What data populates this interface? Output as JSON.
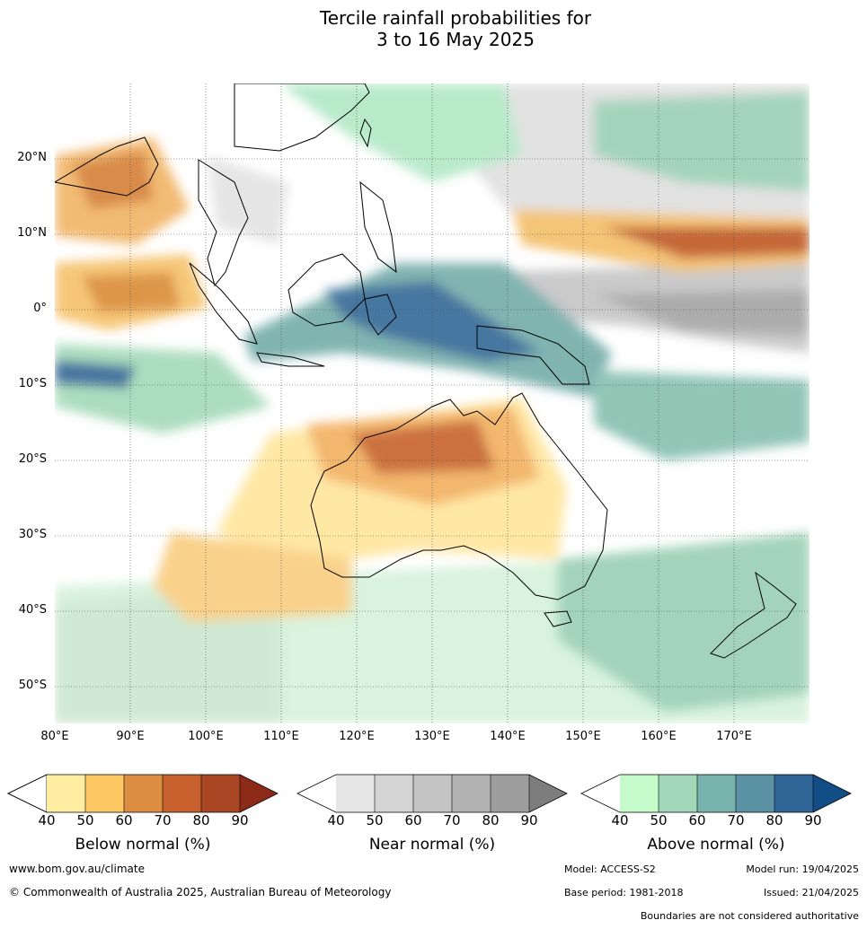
{
  "title_line1": "Tercile rainfall probabilities for",
  "title_line2": "3 to 16 May 2025",
  "lat_labels": [
    "20°N",
    "10°N",
    "0°",
    "10°S",
    "20°S",
    "30°S",
    "40°S",
    "50°S"
  ],
  "lon_labels": [
    "80°E",
    "90°E",
    "100°E",
    "110°E",
    "120°E",
    "130°E",
    "140°E",
    "150°E",
    "160°E",
    "170°E"
  ],
  "legends": [
    {
      "title": "Below normal (%)",
      "ticks": [
        "40",
        "50",
        "60",
        "70",
        "80",
        "90"
      ],
      "colors": [
        "#ffeea1",
        "#fec965",
        "#dc8d41",
        "#c8602e",
        "#a94724",
        "#8d2b18"
      ]
    },
    {
      "title": "Near normal (%)",
      "ticks": [
        "40",
        "50",
        "60",
        "70",
        "80",
        "90"
      ],
      "colors": [
        "#e6e6e6",
        "#d4d4d4",
        "#c4c4c4",
        "#b3b3b3",
        "#9e9e9e",
        "#7d7d7d"
      ]
    },
    {
      "title": "Above normal (%)",
      "ticks": [
        "40",
        "50",
        "60",
        "70",
        "80",
        "90"
      ],
      "colors": [
        "#c6fbcb",
        "#a2d7b9",
        "#78b2ac",
        "#5a92a3",
        "#2f6597",
        "#134d86"
      ]
    }
  ],
  "footer": {
    "url": "www.bom.gov.au/climate",
    "copyright": "© Commonwealth of Australia 2025, Australian Bureau of Meteorology",
    "model": "Model: ACCESS-S2",
    "model_run": "Model run: 19/04/2025",
    "base_period": "Base period: 1981-2018",
    "issued": "Issued: 21/04/2025",
    "boundaries": "Boundaries are not considered authoritative"
  }
}
